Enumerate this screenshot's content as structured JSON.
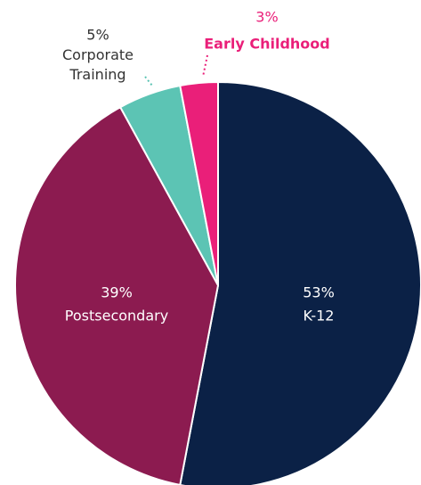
{
  "chart_data": {
    "type": "pie",
    "categories": [
      "K-12",
      "Postsecondary",
      "Corporate Training",
      "Early Childhood"
    ],
    "values": [
      53,
      39,
      5,
      3
    ],
    "value_labels": [
      "53%",
      "39%",
      "5%",
      "3%"
    ],
    "colors": [
      "#0b2146",
      "#8c1b50",
      "#5cc4b4",
      "#ea1f79"
    ]
  }
}
